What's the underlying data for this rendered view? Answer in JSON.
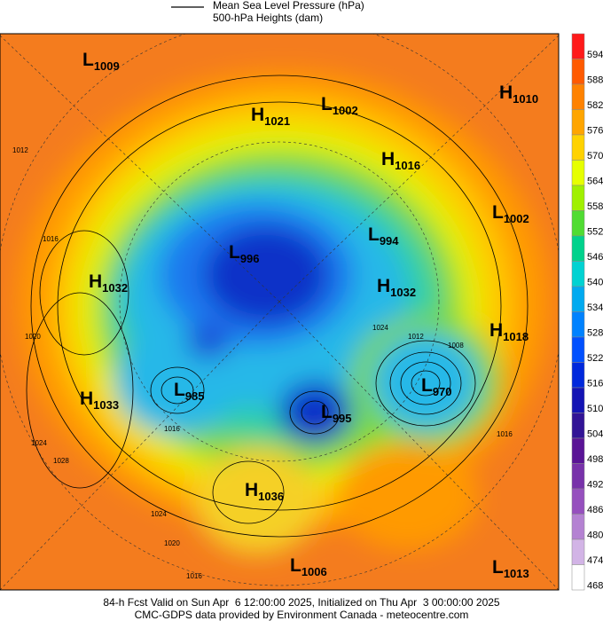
{
  "header": {
    "legend": [
      "Mean Sea Level Pressure (hPa)",
      "500-hPa Heights (dam)"
    ]
  },
  "centers": [
    {
      "type": "L",
      "value": 1009
    },
    {
      "type": "H",
      "value": 1021
    },
    {
      "type": "L",
      "value": 1002
    },
    {
      "type": "H",
      "value": 1010
    },
    {
      "type": "H",
      "value": 1016
    },
    {
      "type": "L",
      "value": 1002
    },
    {
      "type": "L",
      "value": 996
    },
    {
      "type": "L",
      "value": 994
    },
    {
      "type": "H",
      "value": 1032
    },
    {
      "type": "H",
      "value": 1032
    },
    {
      "type": "H",
      "value": 1018
    },
    {
      "type": "H",
      "value": 1033
    },
    {
      "type": "L",
      "value": 985
    },
    {
      "type": "L",
      "value": 995
    },
    {
      "type": "L",
      "value": 970
    },
    {
      "type": "H",
      "value": 1036
    },
    {
      "type": "L",
      "value": 1006
    },
    {
      "type": "L",
      "value": 1013
    }
  ],
  "contour_labels": [
    1012,
    1016,
    1020,
    1024,
    1028,
    1024,
    1020,
    1016,
    1016,
    1012,
    1008,
    1024,
    1016
  ],
  "colorbar": {
    "levels": [
      594,
      588,
      582,
      576,
      570,
      564,
      558,
      552,
      546,
      540,
      534,
      528,
      522,
      516,
      510,
      504,
      498,
      492,
      486,
      480,
      474,
      468
    ],
    "colors": [
      "#ff1a1a",
      "#ff5a00",
      "#ff8200",
      "#ffa500",
      "#ffd200",
      "#e6ff00",
      "#a0f000",
      "#50dc32",
      "#00d28c",
      "#00d2d2",
      "#00aaf0",
      "#0082ff",
      "#0050ff",
      "#0028dc",
      "#1414b4",
      "#321496",
      "#5a1496",
      "#7832aa",
      "#9650be",
      "#b482d2",
      "#d2b4e6",
      "#ffffff"
    ]
  },
  "footer": [
    "84-h Fcst Valid on Sun Apr  6 12:00:00 2025, Initialized on Thu Apr  3 00:00:00 2025",
    "CMC-GDPS data provided by Environment Canada - meteocentre.com"
  ]
}
